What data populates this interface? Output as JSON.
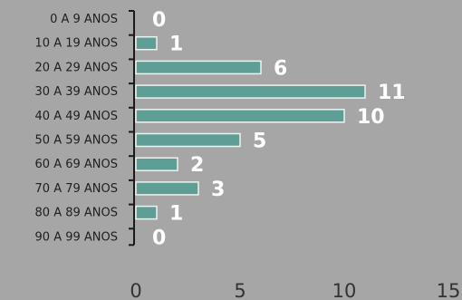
{
  "chart_data": {
    "type": "bar",
    "orientation": "horizontal",
    "categories": [
      "0 A 9 ANOS",
      "10 A 19 ANOS",
      "20 A 29 ANOS",
      "30 A 39 ANOS",
      "40 A 49 ANOS",
      "50 A 59 ANOS",
      "60 A 69 ANOS",
      "70 A 79 ANOS",
      "80 A 89 ANOS",
      "90 A 99 ANOS"
    ],
    "values": [
      0,
      1,
      6,
      11,
      10,
      5,
      2,
      3,
      1,
      0
    ],
    "data_labels": [
      "0",
      "1",
      "6",
      "11",
      "10",
      "5",
      "2",
      "3",
      "1",
      "0"
    ],
    "x_ticks": [
      "0",
      "5",
      "10",
      "15"
    ],
    "xlim": [
      0,
      15
    ],
    "grid": false,
    "legend": "none"
  },
  "colors": {
    "background": "#a6a6a6",
    "bar_fill": "#5f9e95",
    "bar_stroke": "#eef2f1",
    "category_text": "#1f1f1f",
    "tick_text": "#333333",
    "data_label": "#ffffff",
    "axis": "#1a1a1a"
  }
}
